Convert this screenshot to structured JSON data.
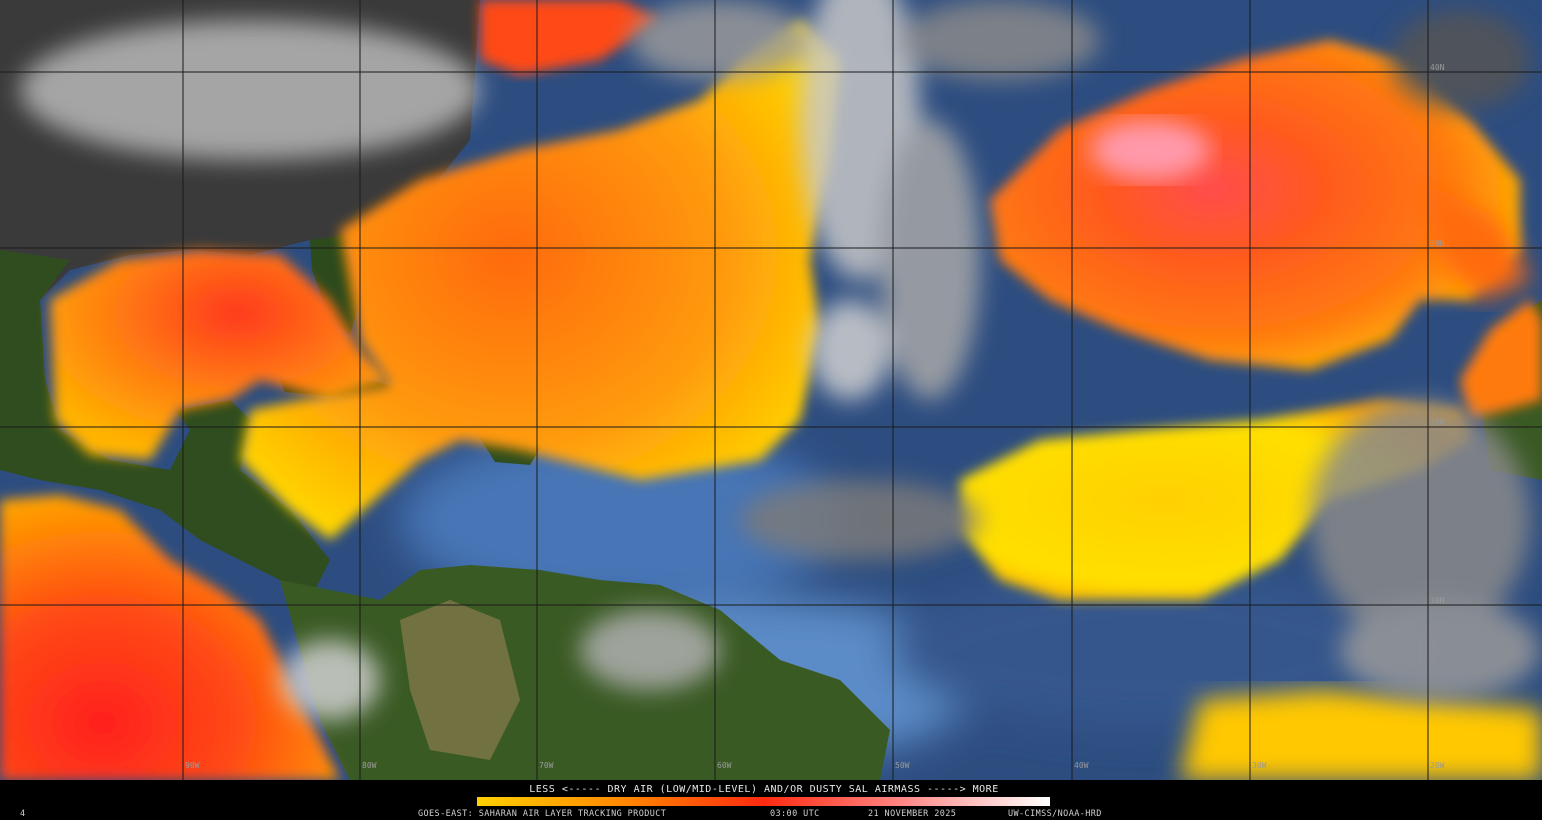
{
  "colorbar": {
    "caption": "LESS <----- DRY AIR (LOW/MID-LEVEL) AND/OR DUSTY SAL AIRMASS -----> MORE"
  },
  "footer": {
    "frame": "4",
    "product": "GOES-EAST: SAHARAN AIR LAYER TRACKING PRODUCT",
    "time": "03:00 UTC",
    "date": "21 NOVEMBER 2025",
    "credit": "UW-CIMSS/NOAA-HRD"
  },
  "grid": {
    "longitude_labels": [
      "90W",
      "80W",
      "70W",
      "60W",
      "50W",
      "40W",
      "30W",
      "20W"
    ],
    "latitude_labels": [
      "40N",
      "30N",
      "20N",
      "10N"
    ]
  }
}
